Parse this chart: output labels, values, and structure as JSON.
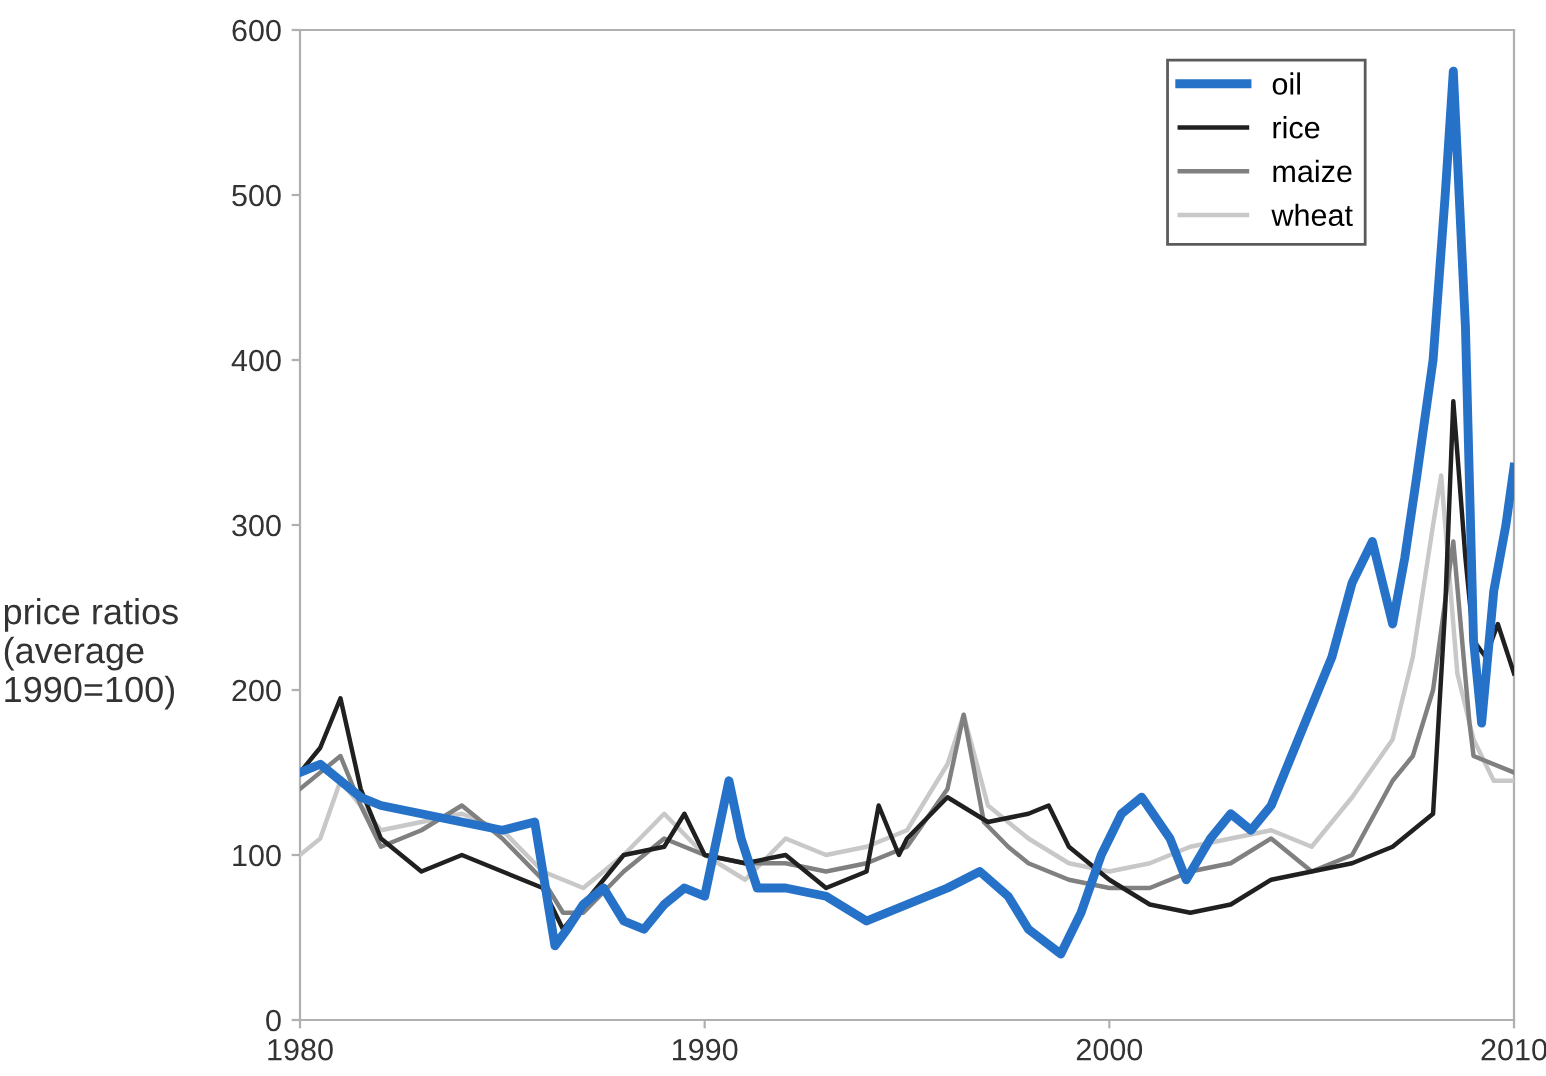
{
  "chart_data": {
    "type": "line",
    "ylabel": "price ratios\n(average\n1990=100)",
    "xlim": [
      1980,
      2010
    ],
    "xticks": [
      1980,
      1990,
      2000,
      2010
    ],
    "ylim": [
      0,
      600
    ],
    "yticks": [
      0,
      100,
      200,
      300,
      400,
      500,
      600
    ],
    "legend": "top right",
    "grid": false,
    "series": [
      {
        "name": "oil",
        "color": "#2672c8",
        "x": [
          1980,
          1980.5,
          1981,
          1981.5,
          1982,
          1983,
          1984,
          1985,
          1985.8,
          1986.3,
          1986.6,
          1987,
          1987.5,
          1988,
          1988.5,
          1989,
          1989.5,
          1990,
          1990.6,
          1990.9,
          1991.3,
          1992,
          1993,
          1994,
          1995,
          1996,
          1996.8,
          1997.5,
          1998,
          1998.8,
          1999.3,
          1999.8,
          2000.3,
          2000.8,
          2001.5,
          2001.9,
          2002.5,
          2003,
          2003.5,
          2004,
          2004.5,
          2005,
          2005.5,
          2006,
          2006.5,
          2007,
          2007.3,
          2007.6,
          2008,
          2008.3,
          2008.5,
          2008.8,
          2009,
          2009.2,
          2009.5,
          2009.8,
          2010
        ],
        "values": [
          150,
          155,
          145,
          135,
          130,
          125,
          120,
          115,
          120,
          45,
          55,
          70,
          80,
          60,
          55,
          70,
          80,
          75,
          145,
          110,
          80,
          80,
          75,
          60,
          70,
          80,
          90,
          75,
          55,
          40,
          65,
          100,
          125,
          135,
          110,
          85,
          110,
          125,
          115,
          130,
          160,
          190,
          220,
          265,
          290,
          240,
          280,
          330,
          400,
          500,
          575,
          420,
          230,
          180,
          260,
          300,
          335
        ]
      },
      {
        "name": "rice",
        "color": "#202020",
        "x": [
          1980,
          1980.5,
          1981,
          1981.5,
          1982,
          1983,
          1984,
          1985,
          1986,
          1986.5,
          1987,
          1988,
          1989,
          1989.5,
          1990,
          1991,
          1992,
          1993,
          1994,
          1994.3,
          1994.8,
          1995,
          1996,
          1997,
          1998,
          1998.5,
          1999,
          2000,
          2001,
          2002,
          2003,
          2004,
          2005,
          2006,
          2007,
          2008,
          2008.3,
          2008.5,
          2008.8,
          2009,
          2009.3,
          2009.6,
          2010
        ],
        "values": [
          150,
          165,
          195,
          140,
          110,
          90,
          100,
          90,
          80,
          55,
          70,
          100,
          105,
          125,
          100,
          95,
          100,
          80,
          90,
          130,
          100,
          110,
          135,
          120,
          125,
          130,
          105,
          85,
          70,
          65,
          70,
          85,
          90,
          95,
          105,
          125,
          250,
          375,
          280,
          230,
          220,
          240,
          210
        ]
      },
      {
        "name": "maize",
        "color": "#808080",
        "x": [
          1980,
          1981,
          1981.5,
          1982,
          1983,
          1984,
          1985,
          1986,
          1986.5,
          1987,
          1988,
          1989,
          1990,
          1991,
          1992,
          1993,
          1994,
          1995,
          1996,
          1996.4,
          1996.9,
          1997.5,
          1998,
          1999,
          2000,
          2001,
          2002,
          2003,
          2004,
          2005,
          2006,
          2007,
          2007.5,
          2008,
          2008.5,
          2008.9,
          2009,
          2010
        ],
        "values": [
          140,
          160,
          130,
          105,
          115,
          130,
          110,
          85,
          65,
          65,
          90,
          110,
          100,
          95,
          95,
          90,
          95,
          105,
          140,
          185,
          120,
          105,
          95,
          85,
          80,
          80,
          90,
          95,
          110,
          90,
          100,
          145,
          160,
          200,
          290,
          180,
          160,
          150
        ]
      },
      {
        "name": "wheat",
        "color": "#c8c8c8",
        "x": [
          1980,
          1980.5,
          1981,
          1981.5,
          1982,
          1983,
          1984,
          1985,
          1986,
          1987,
          1988,
          1989,
          1990,
          1991,
          1992,
          1993,
          1994,
          1995,
          1996,
          1996.4,
          1997,
          1998,
          1999,
          2000,
          2001,
          2002,
          2003,
          2004,
          2005,
          2006,
          2007,
          2007.5,
          2008,
          2008.2,
          2008.6,
          2009,
          2009.5,
          2010
        ],
        "values": [
          100,
          110,
          145,
          130,
          115,
          120,
          125,
          115,
          90,
          80,
          100,
          125,
          100,
          85,
          110,
          100,
          105,
          115,
          155,
          185,
          130,
          110,
          95,
          90,
          95,
          105,
          110,
          115,
          105,
          135,
          170,
          220,
          300,
          330,
          210,
          170,
          145,
          145
        ]
      }
    ]
  }
}
